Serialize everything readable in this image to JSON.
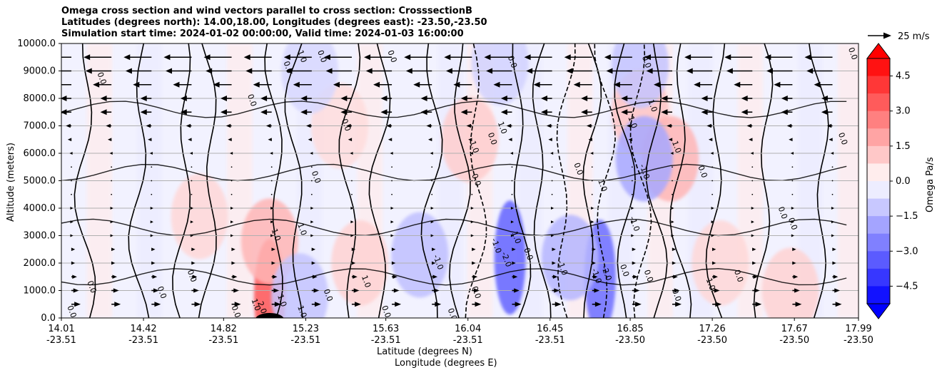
{
  "title": {
    "line1": "Omega cross section and wind vectors parallel to cross section: CrosssectionB",
    "line2": "Latitudes (degrees north): 14.00,18.00, Longitudes (degrees east): -23.50,-23.50",
    "line3": "Simulation start time: 2024-01-02 00:00:00, Valid time: 2024-01-03 16:00:00"
  },
  "axes": {
    "ylabel": "Altitude (meters)",
    "xlabel_line1": "Latitude (degrees N)",
    "xlabel_line2": "Longitude (degrees E)"
  },
  "colorbar": {
    "label": "Omega Pa/s",
    "ticks": [
      "4.5",
      "3.0",
      "1.5",
      "0.0",
      "−1.5",
      "−3.0",
      "−4.5"
    ],
    "range": [
      -5.25,
      5.25
    ],
    "colors": {
      "positive": "#ff0000",
      "negative": "#0000ff",
      "zero": "#ffffff"
    }
  },
  "reference_vector": {
    "label": "25 m/s"
  },
  "chart_data": {
    "type": "contour_section",
    "y_ticks": [
      "0.0",
      "1000.0",
      "2000.0",
      "3000.0",
      "4000.0",
      "5000.0",
      "6000.0",
      "7000.0",
      "8000.0",
      "9000.0",
      "10000.0"
    ],
    "y_values": [
      0,
      1000,
      2000,
      3000,
      4000,
      5000,
      6000,
      7000,
      8000,
      9000,
      10000
    ],
    "ylim": [
      0,
      10000
    ],
    "x_ticks": [
      {
        "lat": "14.01",
        "lon": "-23.51"
      },
      {
        "lat": "14.42",
        "lon": "-23.51"
      },
      {
        "lat": "14.82",
        "lon": "-23.51"
      },
      {
        "lat": "15.23",
        "lon": "-23.51"
      },
      {
        "lat": "15.63",
        "lon": "-23.51"
      },
      {
        "lat": "16.04",
        "lon": "-23.51"
      },
      {
        "lat": "16.45",
        "lon": "-23.51"
      },
      {
        "lat": "16.85",
        "lon": "-23.50"
      },
      {
        "lat": "17.26",
        "lon": "-23.50"
      },
      {
        "lat": "17.67",
        "lon": "-23.50"
      },
      {
        "lat": "17.99",
        "lon": "-23.50"
      }
    ],
    "x_lat_values": [
      14.01,
      14.42,
      14.82,
      15.23,
      15.63,
      16.04,
      16.45,
      16.85,
      17.26,
      17.67,
      17.99
    ],
    "grid": "horizontal",
    "contour_levels": [
      -2.0,
      -1.0,
      0.0,
      1.0,
      2.0
    ],
    "shading_blobs": [
      {
        "lat": 15.05,
        "alt": 800,
        "omega": 3.5
      },
      {
        "lat": 15.05,
        "alt": 2800,
        "omega": 1.5
      },
      {
        "lat": 14.7,
        "alt": 3700,
        "omega": 0.8
      },
      {
        "lat": 15.5,
        "alt": 2000,
        "omega": 0.9
      },
      {
        "lat": 15.4,
        "alt": 7000,
        "omega": 0.7
      },
      {
        "lat": 16.05,
        "alt": 6500,
        "omega": 1.0
      },
      {
        "lat": 16.9,
        "alt": 7500,
        "omega": 1.2
      },
      {
        "lat": 17.05,
        "alt": 5800,
        "omega": 1.5
      },
      {
        "lat": 17.65,
        "alt": 1000,
        "omega": 0.9
      },
      {
        "lat": 17.3,
        "alt": 2000,
        "omega": 0.8
      },
      {
        "lat": 15.25,
        "alt": 9000,
        "omega": -0.8
      },
      {
        "lat": 16.25,
        "alt": 2200,
        "omega": -3.2
      },
      {
        "lat": 16.7,
        "alt": 1500,
        "omega": -3.0
      },
      {
        "lat": 16.55,
        "alt": 2200,
        "omega": -1.5
      },
      {
        "lat": 16.92,
        "alt": 5800,
        "omega": -1.8
      },
      {
        "lat": 16.9,
        "alt": 9200,
        "omega": -1.2
      },
      {
        "lat": 15.8,
        "alt": 2300,
        "omega": -1.3
      },
      {
        "lat": 16.2,
        "alt": 9300,
        "omega": -0.9
      },
      {
        "lat": 15.2,
        "alt": 800,
        "omega": -1.2
      }
    ],
    "wind_vectors_m_s": [
      {
        "alt": 9500,
        "u": -15
      },
      {
        "alt": 9000,
        "u": -14
      },
      {
        "alt": 8500,
        "u": -10
      },
      {
        "alt": 8000,
        "u": -6
      },
      {
        "alt": 7500,
        "u": -6
      },
      {
        "alt": 7000,
        "u": -3
      },
      {
        "alt": 6500,
        "u": -2
      },
      {
        "alt": 6000,
        "u": -1
      },
      {
        "alt": 5500,
        "u": 0
      },
      {
        "alt": 5000,
        "u": 0
      },
      {
        "alt": 4500,
        "u": 0
      },
      {
        "alt": 4000,
        "u": 1
      },
      {
        "alt": 3500,
        "u": 1
      },
      {
        "alt": 3000,
        "u": 1
      },
      {
        "alt": 2500,
        "u": 2
      },
      {
        "alt": 2000,
        "u": 2
      },
      {
        "alt": 1500,
        "u": 3
      },
      {
        "alt": 1000,
        "u": 4
      },
      {
        "alt": 500,
        "u": 5
      }
    ],
    "contour_labels": [
      {
        "text": "0.0",
        "lat": 14.2,
        "alt": 8700
      },
      {
        "text": "0.0",
        "lat": 14.95,
        "alt": 7900
      },
      {
        "text": "1.0",
        "lat": 15.2,
        "alt": 9500
      },
      {
        "text": "0.0",
        "lat": 15.13,
        "alt": 9100
      },
      {
        "text": "0.0",
        "lat": 15.3,
        "alt": 9500
      },
      {
        "text": "0.0",
        "lat": 15.42,
        "alt": 7000
      },
      {
        "text": "0.0",
        "lat": 15.27,
        "alt": 5100
      },
      {
        "text": "1.0",
        "lat": 15.07,
        "alt": 3000
      },
      {
        "text": "1.0",
        "lat": 15.2,
        "alt": 3200
      },
      {
        "text": "0.0",
        "lat": 14.65,
        "alt": 1500
      },
      {
        "text": "0.0",
        "lat": 14.15,
        "alt": 1100
      },
      {
        "text": "0.0",
        "lat": 14.5,
        "alt": 900
      },
      {
        "text": "0.0",
        "lat": 14.05,
        "alt": 200
      },
      {
        "text": "1.0",
        "lat": 14.97,
        "alt": 450
      },
      {
        "text": "2.0",
        "lat": 15.0,
        "alt": 350
      },
      {
        "text": "1.0",
        "lat": 15.1,
        "alt": 600
      },
      {
        "text": "0.0",
        "lat": 14.87,
        "alt": 200
      },
      {
        "text": "1.0",
        "lat": 15.2,
        "alt": 200
      },
      {
        "text": "0.0",
        "lat": 15.33,
        "alt": 800
      },
      {
        "text": "1.0",
        "lat": 15.52,
        "alt": 1300
      },
      {
        "text": "0.0",
        "lat": 15.62,
        "alt": 200
      },
      {
        "text": "0.0",
        "lat": 15.95,
        "alt": 100
      },
      {
        "text": "-1.0",
        "lat": 15.88,
        "alt": 2000
      },
      {
        "text": "0.0",
        "lat": 16.07,
        "alt": 900
      },
      {
        "text": "0.0",
        "lat": 16.07,
        "alt": 5000
      },
      {
        "text": "0.0",
        "lat": 16.15,
        "alt": 6500
      },
      {
        "text": "1.0",
        "lat": 16.06,
        "alt": 6200
      },
      {
        "text": "1.0",
        "lat": 16.2,
        "alt": 6900
      },
      {
        "text": "-1.0",
        "lat": 16.17,
        "alt": 2600
      },
      {
        "text": "-2.0",
        "lat": 16.22,
        "alt": 2100
      },
      {
        "text": "1.0",
        "lat": 16.27,
        "alt": 2900
      },
      {
        "text": "0.0",
        "lat": 16.33,
        "alt": 2300
      },
      {
        "text": "-1.0",
        "lat": 16.5,
        "alt": 1800
      },
      {
        "text": "0.0",
        "lat": 16.58,
        "alt": 5400
      },
      {
        "text": "1.0",
        "lat": 16.7,
        "alt": 4800
      },
      {
        "text": "-2.0",
        "lat": 16.72,
        "alt": 1600
      },
      {
        "text": "-1.0",
        "lat": 16.67,
        "alt": 1500
      },
      {
        "text": "0.0",
        "lat": 16.81,
        "alt": 1700
      },
      {
        "text": "0.0",
        "lat": 16.93,
        "alt": 1500
      },
      {
        "text": "-1.0",
        "lat": 16.86,
        "alt": 3400
      },
      {
        "text": "-1.0",
        "lat": 16.91,
        "alt": 5300
      },
      {
        "text": "1.0",
        "lat": 16.85,
        "alt": 7100
      },
      {
        "text": "1.0",
        "lat": 16.95,
        "alt": 7700
      },
      {
        "text": "1.0",
        "lat": 17.07,
        "alt": 6200
      },
      {
        "text": "0.0",
        "lat": 16.92,
        "alt": 9300
      },
      {
        "text": "0.0",
        "lat": 16.25,
        "alt": 9300
      },
      {
        "text": "0.0",
        "lat": 17.07,
        "alt": 800
      },
      {
        "text": "1.0",
        "lat": 17.24,
        "alt": 1200
      },
      {
        "text": "0.0",
        "lat": 17.38,
        "alt": 1500
      },
      {
        "text": "0.0",
        "lat": 17.2,
        "alt": 5300
      },
      {
        "text": "0.0",
        "lat": 17.6,
        "alt": 3800
      },
      {
        "text": "0.0",
        "lat": 17.65,
        "alt": 3400
      },
      {
        "text": "0.0",
        "lat": 17.9,
        "alt": 6500
      },
      {
        "text": "0.0",
        "lat": 17.95,
        "alt": 9600
      },
      {
        "text": "0.0",
        "lat": 15.65,
        "alt": 9500
      }
    ]
  }
}
